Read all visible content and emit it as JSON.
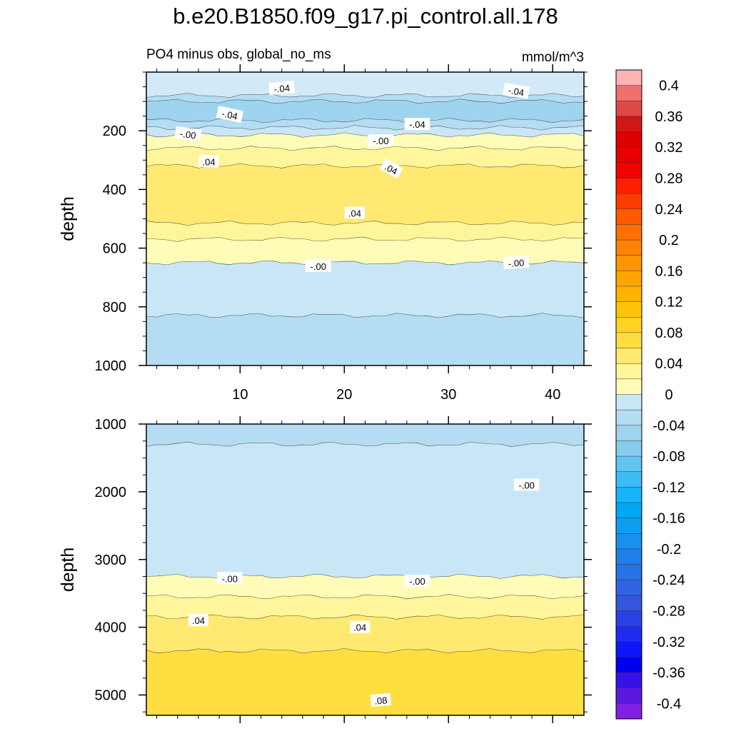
{
  "chart_data": {
    "type": "contour",
    "title": "b.e20.B1850.f09_g17.pi_control.all.178",
    "subtitle": "PO4 minus obs, global_no_ms",
    "units": "mmol/m^3",
    "panels": [
      {
        "name": "upper",
        "xlabel": "",
        "ylabel": "depth",
        "xlim": [
          1,
          43
        ],
        "ylim": [
          1000,
          0
        ],
        "xticks": [
          "10",
          "20",
          "30",
          "40"
        ],
        "yticks": [
          "200",
          "400",
          "600",
          "800",
          "1000"
        ],
        "bands": [
          {
            "from": 0,
            "to": 80,
            "color": "#d2eaf7",
            "value": -0.02
          },
          {
            "from": 80,
            "to": 100,
            "color": "#b4dcf2",
            "value": -0.04
          },
          {
            "from": 100,
            "to": 165,
            "color": "#9fd4ee",
            "value": -0.06
          },
          {
            "from": 165,
            "to": 190,
            "color": "#b4dcf2",
            "value": -0.04
          },
          {
            "from": 190,
            "to": 215,
            "color": "#c8e6f6",
            "value": -0.02
          },
          {
            "from": 215,
            "to": 260,
            "color": "#fffcb8",
            "value": 0.01
          },
          {
            "from": 260,
            "to": 320,
            "color": "#fff59a",
            "value": 0.03
          },
          {
            "from": 320,
            "to": 515,
            "color": "#ffe970",
            "value": 0.05
          },
          {
            "from": 515,
            "to": 570,
            "color": "#fff59a",
            "value": 0.03
          },
          {
            "from": 570,
            "to": 650,
            "color": "#fffcb8",
            "value": 0.01
          },
          {
            "from": 650,
            "to": 830,
            "color": "#c8e6f6",
            "value": -0.01
          },
          {
            "from": 830,
            "to": 1000,
            "color": "#b4dcf2",
            "value": -0.03
          }
        ],
        "labels": [
          {
            "text": "-.04",
            "x": 14,
            "y": 55,
            "rot": -5
          },
          {
            "text": "-.04",
            "x": 36.5,
            "y": 65,
            "rot": 10
          },
          {
            "text": "-.04",
            "x": 9,
            "y": 145,
            "rot": 12
          },
          {
            "text": "-.04",
            "x": 27,
            "y": 178,
            "rot": 0
          },
          {
            "text": "-.00",
            "x": 5,
            "y": 212,
            "rot": 8
          },
          {
            "text": "-.00",
            "x": 23.5,
            "y": 234,
            "rot": 0
          },
          {
            "text": ".04",
            "x": 7,
            "y": 305,
            "rot": 0
          },
          {
            "text": ".04",
            "x": 24.5,
            "y": 330,
            "rot": 28
          },
          {
            "text": ".04",
            "x": 21,
            "y": 480,
            "rot": 0
          },
          {
            "text": "-.00",
            "x": 17.5,
            "y": 662,
            "rot": 0
          },
          {
            "text": "-.00",
            "x": 36.5,
            "y": 650,
            "rot": -4
          }
        ]
      },
      {
        "name": "lower",
        "xlabel": "",
        "ylabel": "depth",
        "xlim": [
          1,
          43
        ],
        "ylim": [
          5300,
          1000
        ],
        "xticks": [],
        "yticks": [
          "1000",
          "2000",
          "3000",
          "4000",
          "5000"
        ],
        "bands": [
          {
            "from": 1000,
            "to": 1300,
            "color": "#b4dcf2",
            "value": -0.03
          },
          {
            "from": 1300,
            "to": 3250,
            "color": "#c8e6f6",
            "value": -0.01
          },
          {
            "from": 3250,
            "to": 3550,
            "color": "#fffcb8",
            "value": 0.01
          },
          {
            "from": 3550,
            "to": 3850,
            "color": "#fff59a",
            "value": 0.03
          },
          {
            "from": 3850,
            "to": 4350,
            "color": "#ffe970",
            "value": 0.05
          },
          {
            "from": 4350,
            "to": 5300,
            "color": "#ffdf40",
            "value": 0.07
          }
        ],
        "labels": [
          {
            "text": "-.00",
            "x": 37.5,
            "y": 1900,
            "rot": 0
          },
          {
            "text": "-.00",
            "x": 9,
            "y": 3280,
            "rot": 0
          },
          {
            "text": "-.00",
            "x": 27,
            "y": 3320,
            "rot": 0
          },
          {
            "text": ".04",
            "x": 6,
            "y": 3900,
            "rot": 0
          },
          {
            "text": ".04",
            "x": 21.5,
            "y": 4000,
            "rot": 0
          },
          {
            "text": ".08",
            "x": 23.5,
            "y": 5080,
            "rot": -5
          }
        ]
      }
    ],
    "colorbar": {
      "labels": [
        "0.4",
        "0.36",
        "0.32",
        "0.28",
        "0.24",
        "0.2",
        "0.16",
        "0.12",
        "0.08",
        "0.04",
        "0",
        "-0.04",
        "-0.08",
        "-0.12",
        "-0.16",
        "-0.2",
        "-0.24",
        "-0.28",
        "-0.32",
        "-0.36",
        "-0.4"
      ],
      "colors": [
        "#ffb4b4",
        "#f07070",
        "#e04848",
        "#d01818",
        "#dc0000",
        "#e80000",
        "#f40000",
        "#ff1e00",
        "#ff3c00",
        "#ff5a00",
        "#ff7000",
        "#ff8200",
        "#ff9400",
        "#ffa400",
        "#ffb400",
        "#ffc40a",
        "#ffd224",
        "#ffdf40",
        "#ffe970",
        "#fff59a",
        "#fffcb8",
        "#c8e6f6",
        "#b4dcf2",
        "#9fd4ee",
        "#87ccee",
        "#64c4f0",
        "#3cbcf4",
        "#14b4f8",
        "#00a8f4",
        "#0c9cf0",
        "#1890ee",
        "#2080ea",
        "#2872e6",
        "#3064e2",
        "#3456dc",
        "#2c40e8",
        "#1e2cf2",
        "#0c18f8",
        "#0000f0",
        "#3810e8",
        "#5a18e0",
        "#8020e0"
      ]
    }
  }
}
